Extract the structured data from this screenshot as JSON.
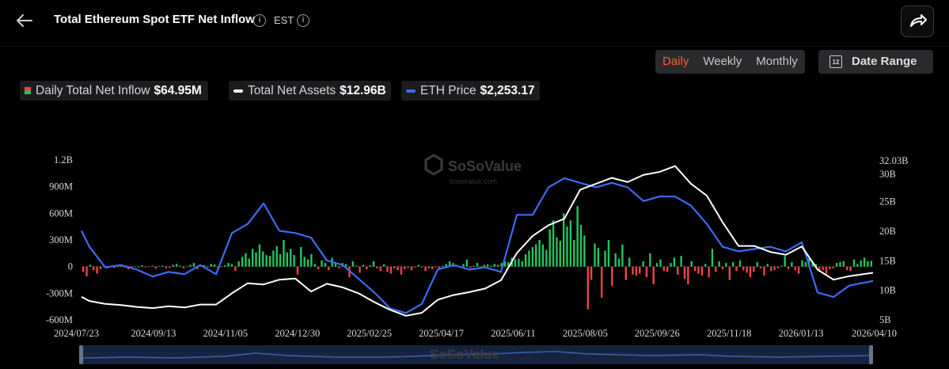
{
  "header": {
    "title": "Total Ethereum Spot ETF Net Inflow",
    "timezone": "EST"
  },
  "period_tabs": [
    {
      "label": "Daily",
      "active": true
    },
    {
      "label": "Weekly",
      "active": false
    },
    {
      "label": "Monthly",
      "active": false
    }
  ],
  "date_range": {
    "label": "Date Range",
    "icon_text": "12"
  },
  "legend": {
    "inflow": {
      "label": "Daily Total Net Inflow",
      "value": "$64.95M"
    },
    "assets": {
      "label": "Total Net Assets",
      "value": "$12.96B"
    },
    "price": {
      "label": "ETH Price",
      "value": "$2,253.17"
    }
  },
  "watermark": {
    "brand": "SoSoValue",
    "url": "sosovalue.com"
  },
  "colors": {
    "inflow_positive": "#22c55e",
    "inflow_negative": "#ef4444",
    "total_net_assets": "#ffffff",
    "eth_price": "#3b6cf6",
    "active_tab": "#ff5a36"
  },
  "chart_data": {
    "type": "bar",
    "x_tick_labels": [
      "2024/07/23",
      "2024/09/13",
      "2024/11/05",
      "2024/12/30",
      "2025/02/25",
      "2025/04/17",
      "2025/06/11",
      "2025/08/05",
      "2025/09/26",
      "2025/11/18",
      "2026/01/13",
      "2026/04/10"
    ],
    "y_left_ticks": [
      "1.2B",
      "900M",
      "600M",
      "300M",
      "0",
      "-300M",
      "-600M"
    ],
    "y_right_ticks": [
      "32.03B",
      "30B",
      "25B",
      "20B",
      "15B",
      "10B",
      "5B"
    ],
    "ylim_left": [
      -600,
      1200
    ],
    "ylim_right": [
      5,
      32.03
    ],
    "series": [
      {
        "name": "Daily Total Net Inflow",
        "type": "bar",
        "units": "M USD",
        "values": [
          -60,
          -110,
          20,
          -40,
          -80,
          -30,
          5,
          -20,
          10,
          -15,
          -5,
          15,
          -10,
          -30,
          -20,
          5,
          -10,
          15,
          -10,
          -5,
          10,
          -25,
          5,
          10,
          -20,
          -15,
          20,
          30,
          10,
          -20,
          5,
          20,
          40,
          -30,
          20,
          15,
          -10,
          30,
          25,
          -35,
          5,
          15,
          40,
          30,
          -50,
          60,
          110,
          150,
          90,
          200,
          160,
          250,
          170,
          130,
          120,
          180,
          230,
          140,
          300,
          160,
          200,
          130,
          -90,
          220,
          110,
          80,
          140,
          30,
          -30,
          70,
          40,
          -40,
          100,
          50,
          -20,
          40,
          30,
          -120,
          60,
          10,
          -70,
          20,
          -30,
          15,
          60,
          -20,
          -50,
          25,
          -60,
          -80,
          -20,
          -40,
          -90,
          -30,
          -15,
          -40,
          -10,
          20,
          -10,
          -50,
          -20,
          -30,
          -10,
          -20,
          10,
          30,
          60,
          40,
          20,
          -10,
          30,
          80,
          -15,
          10,
          40,
          -5,
          20,
          25,
          10,
          30,
          20,
          40,
          60,
          50,
          100,
          80,
          90,
          60,
          140,
          180,
          220,
          250,
          300,
          250,
          190,
          420,
          520,
          330,
          290,
          600,
          450,
          520,
          300,
          680,
          470,
          350,
          -480,
          -150,
          260,
          210,
          -350,
          180,
          300,
          -220,
          150,
          90,
          250,
          -150,
          100,
          -90,
          -100,
          -80,
          60,
          -120,
          150,
          -200,
          40,
          80,
          -50,
          -60,
          40,
          100,
          -90,
          120,
          -140,
          -200,
          60,
          -50,
          -80,
          -100,
          30,
          -120,
          200,
          -60,
          60,
          -30,
          40,
          -150,
          50,
          -50,
          70,
          -40,
          -70,
          -120,
          -60,
          50,
          -20,
          -100,
          30,
          -50,
          -40,
          -20,
          10,
          120,
          -30,
          50,
          -40,
          -80,
          70,
          50,
          90,
          60,
          30,
          -60,
          -40,
          -80,
          -30,
          -20,
          40,
          50,
          60,
          -40,
          -50,
          80,
          30,
          70,
          100,
          60,
          65
        ]
      },
      {
        "name": "Total Net Assets",
        "type": "line",
        "units": "B USD",
        "x": [
          0,
          0.01,
          0.03,
          0.05,
          0.07,
          0.09,
          0.11,
          0.13,
          0.15,
          0.17,
          0.19,
          0.21,
          0.23,
          0.25,
          0.27,
          0.29,
          0.31,
          0.33,
          0.35,
          0.37,
          0.39,
          0.41,
          0.43,
          0.45,
          0.47,
          0.49,
          0.51,
          0.53,
          0.55,
          0.57,
          0.59,
          0.61,
          0.63,
          0.65,
          0.67,
          0.69,
          0.71,
          0.73,
          0.75,
          0.77,
          0.79,
          0.81,
          0.83,
          0.85,
          0.87,
          0.89,
          0.91,
          0.93,
          0.95,
          0.97,
          1.0
        ],
        "values": [
          8.9,
          8.2,
          7.7,
          7.5,
          7.2,
          7.0,
          7.3,
          7.1,
          7.6,
          7.6,
          9.5,
          11.2,
          11.0,
          11.8,
          12.0,
          9.8,
          11.1,
          10.5,
          9.5,
          8.0,
          6.7,
          5.7,
          6.2,
          8.4,
          9.2,
          9.7,
          10.3,
          11.7,
          16.3,
          19.2,
          21.0,
          22.1,
          27.0,
          28.0,
          29.0,
          28.3,
          29.5,
          30.0,
          31.0,
          28.0,
          26.0,
          21.5,
          17.5,
          17.5,
          16.5,
          16.0,
          17.4,
          13.5,
          11.8,
          12.4,
          12.96
        ]
      },
      {
        "name": "ETH Price",
        "type": "line",
        "units": "USD",
        "x": [
          0,
          0.01,
          0.03,
          0.05,
          0.07,
          0.09,
          0.11,
          0.13,
          0.15,
          0.17,
          0.19,
          0.21,
          0.23,
          0.25,
          0.27,
          0.29,
          0.31,
          0.33,
          0.35,
          0.37,
          0.39,
          0.41,
          0.43,
          0.45,
          0.47,
          0.49,
          0.51,
          0.53,
          0.55,
          0.57,
          0.59,
          0.61,
          0.63,
          0.65,
          0.67,
          0.69,
          0.71,
          0.73,
          0.75,
          0.77,
          0.79,
          0.81,
          0.83,
          0.85,
          0.87,
          0.89,
          0.91,
          0.93,
          0.95,
          0.97,
          1.0
        ],
        "values": [
          3350,
          3000,
          2550,
          2600,
          2500,
          2350,
          2450,
          2400,
          2600,
          2400,
          3300,
          3500,
          3950,
          3350,
          3300,
          3200,
          2700,
          2600,
          2300,
          2000,
          1650,
          1550,
          1750,
          2500,
          2600,
          2500,
          2550,
          2450,
          3700,
          3700,
          4300,
          4500,
          4400,
          4300,
          4400,
          4300,
          4000,
          4100,
          4100,
          3900,
          3500,
          3000,
          2900,
          2950,
          3000,
          2900,
          3100,
          2000,
          1900,
          2150,
          2253.17
        ]
      }
    ],
    "grid": false,
    "legend_position": "top-left"
  }
}
